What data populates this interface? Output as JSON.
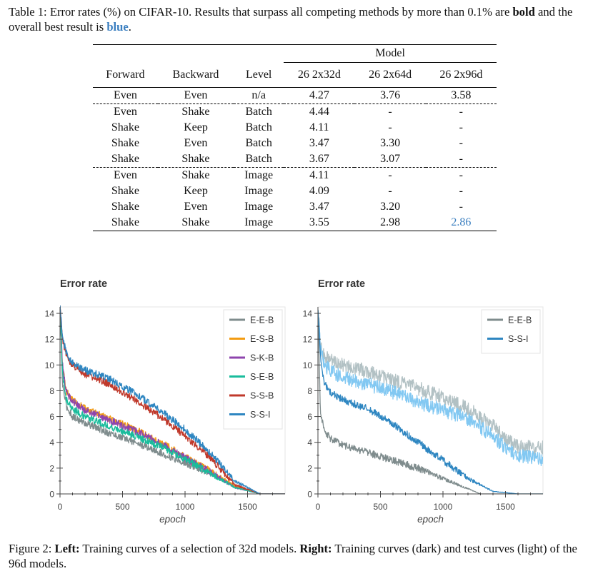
{
  "caption_top": {
    "lead": "Table 1: Error rates (%) on CIFAR-10. Results that surpass all competing methods by more than 0.1% are ",
    "bold_word": "bold",
    "mid": " and the overall best result is ",
    "blue_word": "blue",
    "end": "."
  },
  "table": {
    "model_header": "Model",
    "columns": [
      "Forward",
      "Backward",
      "Level",
      "26 2x32d",
      "26 2x64d",
      "26 2x96d"
    ],
    "groups": [
      {
        "rows": [
          {
            "cells": [
              "Even",
              "Even",
              "n/a",
              "4.27",
              "3.76",
              "3.58"
            ],
            "styles": [
              "",
              "",
              "",
              "",
              "",
              ""
            ]
          }
        ]
      },
      {
        "rows": [
          {
            "cells": [
              "Even",
              "Shake",
              "Batch",
              "4.44",
              "-",
              "-"
            ],
            "styles": [
              "",
              "",
              "",
              "",
              "",
              ""
            ]
          },
          {
            "cells": [
              "Shake",
              "Keep",
              "Batch",
              "4.11",
              "-",
              "-"
            ],
            "styles": [
              "",
              "",
              "",
              "",
              "",
              ""
            ]
          },
          {
            "cells": [
              "Shake",
              "Even",
              "Batch",
              "3.47",
              "3.30",
              "-"
            ],
            "styles": [
              "",
              "",
              "",
              "",
              "bold",
              ""
            ]
          },
          {
            "cells": [
              "Shake",
              "Shake",
              "Batch",
              "3.67",
              "3.07",
              "-"
            ],
            "styles": [
              "",
              "",
              "",
              "",
              "bold",
              ""
            ]
          }
        ]
      },
      {
        "rows": [
          {
            "cells": [
              "Even",
              "Shake",
              "Image",
              "4.11",
              "-",
              "-"
            ],
            "styles": [
              "",
              "",
              "",
              "",
              "",
              ""
            ]
          },
          {
            "cells": [
              "Shake",
              "Keep",
              "Image",
              "4.09",
              "-",
              "-"
            ],
            "styles": [
              "",
              "",
              "",
              "",
              "",
              ""
            ]
          },
          {
            "cells": [
              "Shake",
              "Even",
              "Image",
              "3.47",
              "3.20",
              "-"
            ],
            "styles": [
              "",
              "",
              "",
              "",
              "bold",
              ""
            ]
          },
          {
            "cells": [
              "Shake",
              "Shake",
              "Image",
              "3.55",
              "2.98",
              "2.86"
            ],
            "styles": [
              "",
              "",
              "",
              "",
              "bold",
              "best"
            ]
          }
        ]
      }
    ]
  },
  "chart_data": [
    {
      "type": "line",
      "title": "Error rate",
      "xlabel": "epoch",
      "ylabel": "",
      "xlim": [
        0,
        1800
      ],
      "ylim": [
        0,
        14.5
      ],
      "xticks": [
        0,
        500,
        1000,
        1500
      ],
      "yticks": [
        0,
        2,
        4,
        6,
        8,
        10,
        12,
        14
      ],
      "legend_position": "top-right",
      "series": [
        {
          "name": "E-E-B",
          "color": "#7f8c8d",
          "x": [
            0,
            20,
            50,
            100,
            200,
            400,
            600,
            800,
            1000,
            1200,
            1400,
            1600,
            1700
          ],
          "y": [
            14.5,
            8.5,
            6.8,
            6.0,
            5.5,
            4.7,
            4.0,
            3.2,
            2.4,
            1.6,
            0.6,
            0.0,
            0.0
          ]
        },
        {
          "name": "E-S-B",
          "color": "#f39c12",
          "x": [
            0,
            20,
            50,
            100,
            200,
            400,
            600,
            800,
            1000,
            1200,
            1400,
            1600,
            1700
          ],
          "y": [
            14.5,
            10.0,
            8.0,
            7.3,
            6.6,
            5.8,
            5.0,
            4.0,
            2.9,
            1.8,
            0.6,
            0.0,
            0.0
          ]
        },
        {
          "name": "S-K-B",
          "color": "#8e44ad",
          "x": [
            0,
            20,
            50,
            100,
            200,
            400,
            600,
            800,
            1000,
            1200,
            1400,
            1600,
            1700
          ],
          "y": [
            14.5,
            10.0,
            7.9,
            7.2,
            6.5,
            5.7,
            4.9,
            3.9,
            2.8,
            1.7,
            0.5,
            0.0,
            0.0
          ]
        },
        {
          "name": "S-E-B",
          "color": "#1abc9c",
          "x": [
            0,
            20,
            50,
            100,
            200,
            400,
            600,
            800,
            1000,
            1200,
            1400,
            1600,
            1700
          ],
          "y": [
            14.5,
            9.3,
            7.3,
            6.6,
            6.0,
            5.2,
            4.5,
            3.7,
            2.7,
            1.6,
            0.5,
            0.0,
            0.0
          ]
        },
        {
          "name": "S-S-B",
          "color": "#c0392b",
          "x": [
            0,
            20,
            50,
            100,
            200,
            400,
            600,
            800,
            1000,
            1200,
            1400,
            1600,
            1700
          ],
          "y": [
            14.5,
            12.0,
            10.7,
            10.0,
            9.3,
            8.5,
            7.3,
            6.0,
            4.5,
            2.8,
            0.7,
            0.0,
            0.0
          ]
        },
        {
          "name": "S-S-I",
          "color": "#2e86c1",
          "x": [
            0,
            20,
            50,
            100,
            200,
            400,
            600,
            800,
            1000,
            1200,
            1400,
            1600,
            1700
          ],
          "y": [
            14.5,
            12.2,
            10.9,
            10.2,
            9.6,
            8.9,
            7.8,
            6.5,
            5.0,
            3.2,
            1.0,
            0.0,
            0.0
          ]
        }
      ]
    },
    {
      "type": "line",
      "title": "Error rate",
      "xlabel": "epoch",
      "ylabel": "",
      "xlim": [
        0,
        1800
      ],
      "ylim": [
        0,
        14.5
      ],
      "xticks": [
        0,
        500,
        1000,
        1500
      ],
      "yticks": [
        0,
        2,
        4,
        6,
        8,
        10,
        12,
        14
      ],
      "legend_position": "top-right",
      "series": [
        {
          "name": "",
          "color": "#b2c1c4",
          "x": [
            0,
            20,
            50,
            100,
            200,
            400,
            600,
            800,
            1000,
            1200,
            1400,
            1500,
            1600,
            1700,
            1800
          ],
          "y": [
            14.5,
            11.5,
            10.6,
            10.4,
            10.0,
            9.5,
            8.8,
            8.2,
            7.5,
            6.6,
            5.3,
            4.2,
            3.7,
            3.6,
            3.6
          ]
        },
        {
          "name": "",
          "color": "#82c8f2",
          "x": [
            0,
            20,
            50,
            100,
            200,
            400,
            600,
            800,
            1000,
            1200,
            1400,
            1500,
            1600,
            1700,
            1800
          ],
          "y": [
            14.5,
            11.3,
            10.0,
            9.6,
            9.0,
            8.5,
            7.9,
            7.1,
            6.5,
            5.8,
            4.5,
            3.6,
            3.0,
            2.8,
            2.7
          ]
        },
        {
          "name": "E-E-B",
          "color": "#7f8c8d",
          "x": [
            0,
            20,
            50,
            100,
            200,
            400,
            600,
            800,
            1000,
            1200,
            1300,
            1400
          ],
          "y": [
            14.5,
            6.5,
            4.9,
            4.3,
            3.8,
            3.2,
            2.6,
            2.0,
            1.2,
            0.4,
            0.0,
            0.0
          ]
        },
        {
          "name": "S-S-I",
          "color": "#2e86c1",
          "x": [
            0,
            20,
            50,
            100,
            200,
            400,
            600,
            800,
            1000,
            1200,
            1400,
            1600,
            1700
          ],
          "y": [
            14.5,
            10.5,
            8.6,
            7.9,
            7.3,
            6.6,
            5.4,
            4.0,
            2.6,
            1.2,
            0.2,
            0.0,
            0.0
          ]
        }
      ]
    }
  ],
  "caption_bottom": {
    "lead": "Figure 2: ",
    "left_bold": "Left:",
    "left_text": " Training curves of a selection of 32d models. ",
    "right_bold": "Right:",
    "right_text": " Training curves (dark) and test curves (light) of the 96d models."
  }
}
